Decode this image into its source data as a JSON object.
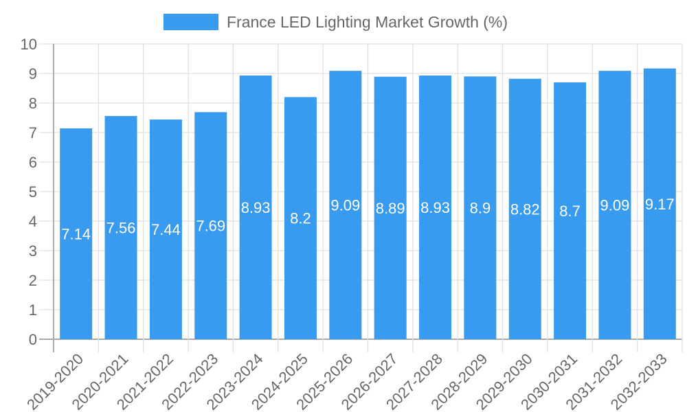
{
  "chart_data": {
    "type": "bar",
    "title": "",
    "legend": {
      "label": "France LED Lighting Market Growth (%)",
      "placement": "top-center"
    },
    "categories": [
      "2019-2020",
      "2020-2021",
      "2021-2022",
      "2022-2023",
      "2023-2024",
      "2024-2025",
      "2025-2026",
      "2026-2027",
      "2027-2028",
      "2028-2029",
      "2029-2030",
      "2030-2031",
      "2031-2032",
      "2032-2033"
    ],
    "series": [
      {
        "name": "France LED Lighting Market Growth (%)",
        "values": [
          7.14,
          7.56,
          7.44,
          7.69,
          8.93,
          8.2,
          9.09,
          8.89,
          8.93,
          8.9,
          8.82,
          8.7,
          9.09,
          9.17
        ]
      }
    ],
    "yticks": [
      "0",
      "1",
      "2",
      "3",
      "4",
      "5",
      "6",
      "7",
      "8",
      "9",
      "10"
    ],
    "ylim": [
      0,
      10
    ],
    "xlabel": "",
    "ylabel": "",
    "grid": true,
    "colors": {
      "bar": "#389bef",
      "grid": "#e0e0e0",
      "axis": "#aaaaaa",
      "text": "#666666",
      "label": "#ffffff"
    }
  }
}
